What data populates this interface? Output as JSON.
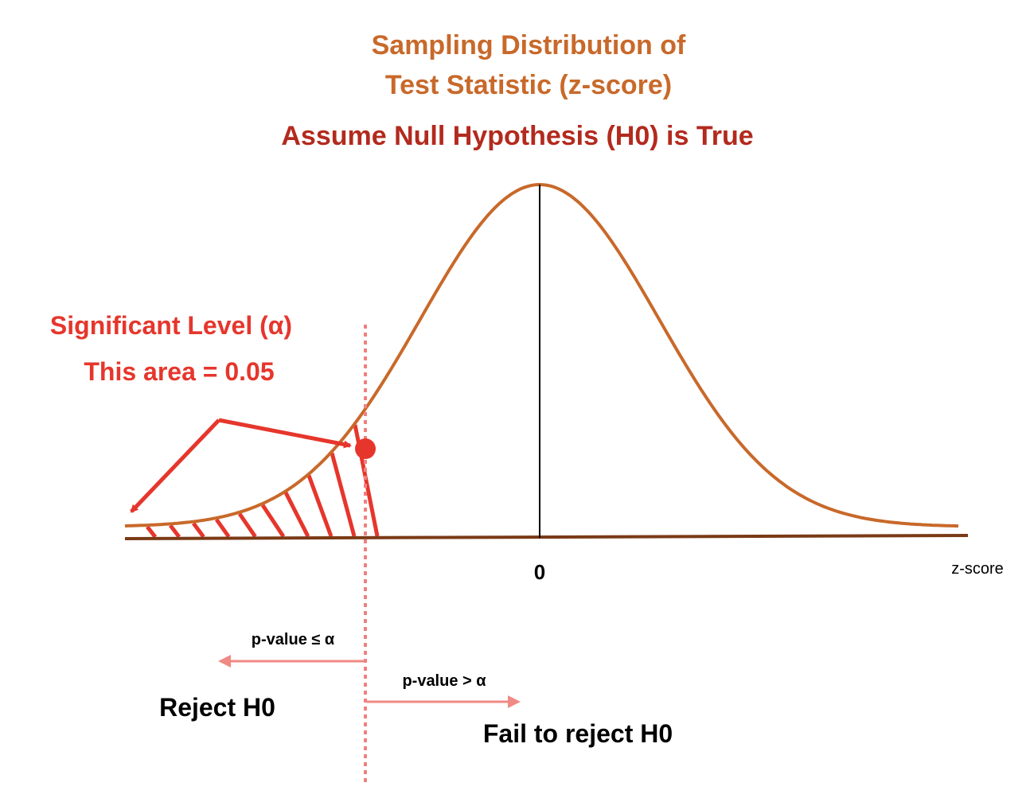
{
  "title_line1": "Sampling Distribution of",
  "title_line2": "Test Statistic (z-score)",
  "subtitle": "Assume Null Hypothesis (H0) is True",
  "alpha_label": "Significant Level (α)",
  "area_label": "This area = 0.05",
  "center_tick": "0",
  "axis_label": "z-score",
  "left_region_condition": "p-value ≤ α",
  "left_region_decision": "Reject H0",
  "right_region_condition": "p-value > α",
  "right_region_decision": "Fail to reject H0",
  "colors": {
    "curve": "#c8692a",
    "axis": "#7a3a16",
    "title": "#c8692a",
    "subtitle": "#b32a1e",
    "alpha": "#e6362c",
    "critical_line": "#f08080",
    "arrows": "#f08a84"
  }
}
